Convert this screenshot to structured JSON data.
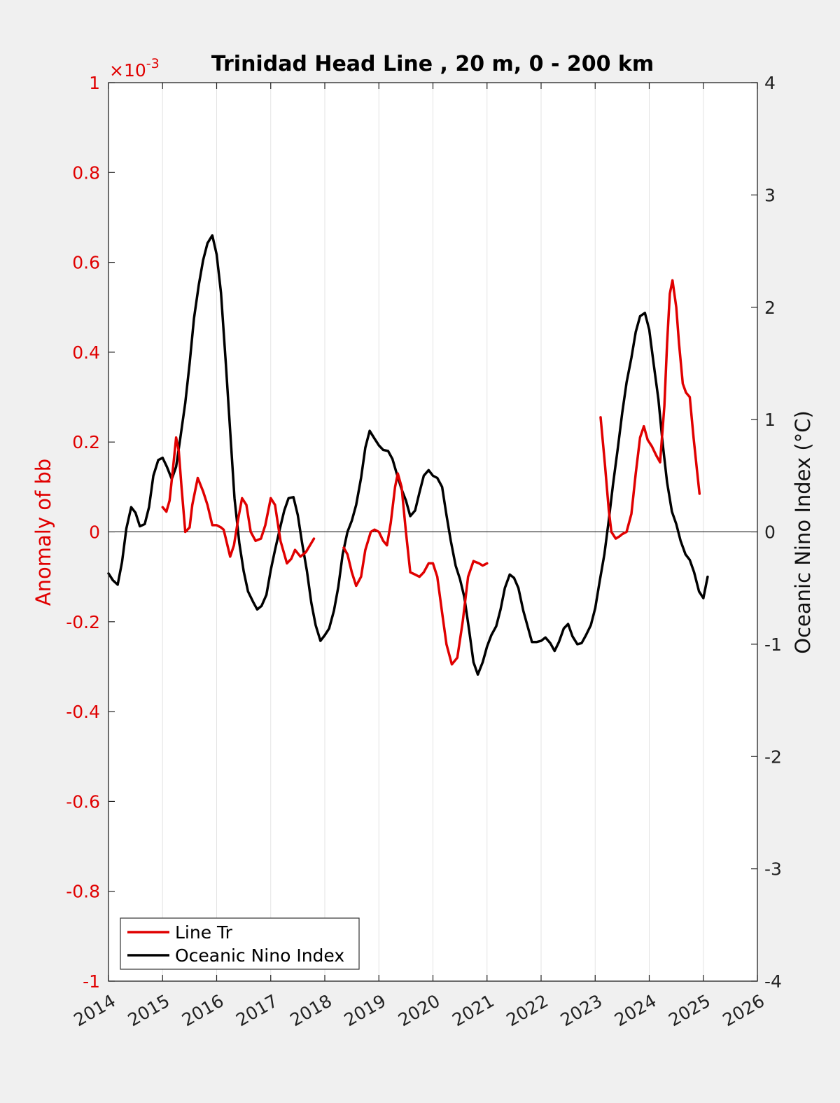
{
  "chart_data": {
    "type": "line",
    "title": "Trinidad Head Line , 20 m, 0 - 200 km",
    "xlabel": "",
    "ylabel_left": "Anomaly of bb",
    "ylabel_right": "Oceanic Nino Index (°C)",
    "left_exponent_base": "×10",
    "left_exponent_power": "-3",
    "xlim": [
      2014,
      2026
    ],
    "ylim_left": [
      -1,
      1
    ],
    "ylim_right": [
      -4,
      4
    ],
    "x_ticks": [
      "2014",
      "2015",
      "2016",
      "2017",
      "2018",
      "2019",
      "2020",
      "2021",
      "2022",
      "2023",
      "2024",
      "2025",
      "2026"
    ],
    "y_ticks_left": [
      "1",
      "0.8",
      "0.6",
      "0.4",
      "0.2",
      "0",
      "-0.2",
      "-0.4",
      "-0.6",
      "-0.8",
      "-1"
    ],
    "y_ticks_right": [
      "4",
      "3",
      "2",
      "1",
      "0",
      "-1",
      "-2",
      "-3",
      "-4"
    ],
    "grid": "x-major",
    "legend_position": "bottom-left",
    "colors": {
      "line_tr": "#e00000",
      "oni": "#000000"
    },
    "series": [
      {
        "name": "Line Tr",
        "axis": "left",
        "segments": [
          [
            [
              2015.0,
              0.055
            ],
            [
              2015.07,
              0.045
            ],
            [
              2015.13,
              0.07
            ],
            [
              2015.2,
              0.15
            ],
            [
              2015.25,
              0.21
            ],
            [
              2015.3,
              0.18
            ],
            [
              2015.35,
              0.1
            ],
            [
              2015.42,
              0.0
            ],
            [
              2015.5,
              0.01
            ],
            [
              2015.55,
              0.06
            ],
            [
              2015.65,
              0.12
            ],
            [
              2015.75,
              0.09
            ],
            [
              2015.83,
              0.06
            ],
            [
              2015.92,
              0.015
            ],
            [
              2016.0,
              0.015
            ],
            [
              2016.08,
              0.01
            ],
            [
              2016.13,
              0.005
            ],
            [
              2016.18,
              -0.02
            ],
            [
              2016.25,
              -0.055
            ],
            [
              2016.32,
              -0.03
            ],
            [
              2016.4,
              0.03
            ],
            [
              2016.47,
              0.075
            ],
            [
              2016.55,
              0.06
            ],
            [
              2016.63,
              0.0
            ],
            [
              2016.72,
              -0.02
            ],
            [
              2016.82,
              -0.015
            ],
            [
              2016.9,
              0.015
            ],
            [
              2017.0,
              0.075
            ],
            [
              2017.08,
              0.06
            ],
            [
              2017.18,
              -0.02
            ],
            [
              2017.3,
              -0.07
            ],
            [
              2017.38,
              -0.06
            ],
            [
              2017.45,
              -0.04
            ],
            [
              2017.55,
              -0.055
            ],
            [
              2017.65,
              -0.045
            ],
            [
              2017.75,
              -0.025
            ],
            [
              2017.8,
              -0.015
            ]
          ],
          [
            [
              2018.35,
              -0.035
            ],
            [
              2018.42,
              -0.05
            ],
            [
              2018.5,
              -0.09
            ],
            [
              2018.58,
              -0.12
            ],
            [
              2018.67,
              -0.1
            ],
            [
              2018.75,
              -0.04
            ],
            [
              2018.85,
              0.0
            ],
            [
              2018.92,
              0.005
            ],
            [
              2019.0,
              0.0
            ],
            [
              2019.08,
              -0.02
            ],
            [
              2019.15,
              -0.03
            ],
            [
              2019.22,
              0.02
            ],
            [
              2019.3,
              0.1
            ],
            [
              2019.35,
              0.13
            ],
            [
              2019.42,
              0.1
            ],
            [
              2019.5,
              0.0
            ],
            [
              2019.58,
              -0.09
            ],
            [
              2019.67,
              -0.095
            ],
            [
              2019.75,
              -0.1
            ],
            [
              2019.83,
              -0.09
            ],
            [
              2019.92,
              -0.07
            ],
            [
              2020.0,
              -0.07
            ],
            [
              2020.08,
              -0.1
            ],
            [
              2020.17,
              -0.18
            ],
            [
              2020.25,
              -0.25
            ],
            [
              2020.35,
              -0.295
            ],
            [
              2020.45,
              -0.28
            ],
            [
              2020.55,
              -0.2
            ],
            [
              2020.65,
              -0.1
            ],
            [
              2020.75,
              -0.065
            ],
            [
              2020.85,
              -0.07
            ],
            [
              2020.92,
              -0.075
            ],
            [
              2021.0,
              -0.07
            ]
          ],
          [
            [
              2023.1,
              0.255
            ],
            [
              2023.18,
              0.15
            ],
            [
              2023.25,
              0.05
            ],
            [
              2023.3,
              0.0
            ],
            [
              2023.38,
              -0.015
            ],
            [
              2023.45,
              -0.01
            ],
            [
              2023.5,
              -0.005
            ],
            [
              2023.58,
              0.0
            ],
            [
              2023.67,
              0.04
            ],
            [
              2023.75,
              0.13
            ],
            [
              2023.83,
              0.21
            ],
            [
              2023.9,
              0.235
            ],
            [
              2023.97,
              0.205
            ],
            [
              2024.05,
              0.19
            ],
            [
              2024.13,
              0.17
            ],
            [
              2024.2,
              0.155
            ],
            [
              2024.28,
              0.28
            ],
            [
              2024.33,
              0.42
            ],
            [
              2024.38,
              0.53
            ],
            [
              2024.43,
              0.56
            ],
            [
              2024.5,
              0.5
            ],
            [
              2024.55,
              0.42
            ],
            [
              2024.62,
              0.33
            ],
            [
              2024.68,
              0.31
            ],
            [
              2024.75,
              0.3
            ],
            [
              2024.82,
              0.21
            ],
            [
              2024.88,
              0.14
            ],
            [
              2024.93,
              0.085
            ]
          ]
        ]
      },
      {
        "name": "Oceanic Nino Index",
        "axis": "right",
        "segments": [
          [
            [
              2014.0,
              -0.37
            ],
            [
              2014.08,
              -0.43
            ],
            [
              2014.17,
              -0.47
            ],
            [
              2014.25,
              -0.27
            ],
            [
              2014.33,
              0.03
            ],
            [
              2014.42,
              0.22
            ],
            [
              2014.5,
              0.17
            ],
            [
              2014.58,
              0.05
            ],
            [
              2014.67,
              0.07
            ],
            [
              2014.75,
              0.22
            ],
            [
              2014.83,
              0.5
            ],
            [
              2014.92,
              0.64
            ],
            [
              2015.0,
              0.66
            ],
            [
              2015.08,
              0.58
            ],
            [
              2015.17,
              0.47
            ],
            [
              2015.25,
              0.58
            ],
            [
              2015.33,
              0.84
            ],
            [
              2015.42,
              1.15
            ],
            [
              2015.5,
              1.5
            ],
            [
              2015.58,
              1.9
            ],
            [
              2015.67,
              2.2
            ],
            [
              2015.75,
              2.42
            ],
            [
              2015.83,
              2.57
            ],
            [
              2015.92,
              2.64
            ],
            [
              2016.0,
              2.47
            ],
            [
              2016.08,
              2.13
            ],
            [
              2016.17,
              1.5
            ],
            [
              2016.25,
              0.9
            ],
            [
              2016.33,
              0.3
            ],
            [
              2016.42,
              -0.1
            ],
            [
              2016.5,
              -0.35
            ],
            [
              2016.58,
              -0.53
            ],
            [
              2016.67,
              -0.62
            ],
            [
              2016.75,
              -0.69
            ],
            [
              2016.83,
              -0.66
            ],
            [
              2016.92,
              -0.56
            ],
            [
              2017.0,
              -0.34
            ],
            [
              2017.08,
              -0.16
            ],
            [
              2017.17,
              0.03
            ],
            [
              2017.25,
              0.19
            ],
            [
              2017.33,
              0.3
            ],
            [
              2017.42,
              0.31
            ],
            [
              2017.5,
              0.15
            ],
            [
              2017.58,
              -0.1
            ],
            [
              2017.67,
              -0.35
            ],
            [
              2017.75,
              -0.63
            ],
            [
              2017.83,
              -0.83
            ],
            [
              2017.92,
              -0.97
            ],
            [
              2018.0,
              -0.92
            ],
            [
              2018.08,
              -0.86
            ],
            [
              2018.17,
              -0.7
            ],
            [
              2018.25,
              -0.49
            ],
            [
              2018.33,
              -0.2
            ],
            [
              2018.42,
              0.0
            ],
            [
              2018.5,
              0.1
            ],
            [
              2018.58,
              0.24
            ],
            [
              2018.67,
              0.48
            ],
            [
              2018.75,
              0.75
            ],
            [
              2018.83,
              0.9
            ],
            [
              2018.92,
              0.83
            ],
            [
              2019.0,
              0.77
            ],
            [
              2019.08,
              0.73
            ],
            [
              2019.17,
              0.72
            ],
            [
              2019.25,
              0.65
            ],
            [
              2019.33,
              0.52
            ],
            [
              2019.42,
              0.38
            ],
            [
              2019.5,
              0.28
            ],
            [
              2019.58,
              0.14
            ],
            [
              2019.67,
              0.19
            ],
            [
              2019.75,
              0.35
            ],
            [
              2019.83,
              0.5
            ],
            [
              2019.92,
              0.55
            ],
            [
              2020.0,
              0.5
            ],
            [
              2020.08,
              0.48
            ],
            [
              2020.17,
              0.4
            ],
            [
              2020.25,
              0.15
            ],
            [
              2020.33,
              -0.08
            ],
            [
              2020.42,
              -0.3
            ],
            [
              2020.5,
              -0.42
            ],
            [
              2020.58,
              -0.58
            ],
            [
              2020.67,
              -0.88
            ],
            [
              2020.75,
              -1.16
            ],
            [
              2020.83,
              -1.27
            ],
            [
              2020.92,
              -1.16
            ],
            [
              2021.0,
              -1.02
            ],
            [
              2021.08,
              -0.92
            ],
            [
              2021.17,
              -0.84
            ],
            [
              2021.25,
              -0.69
            ],
            [
              2021.33,
              -0.5
            ],
            [
              2021.42,
              -0.38
            ],
            [
              2021.5,
              -0.41
            ],
            [
              2021.58,
              -0.5
            ],
            [
              2021.67,
              -0.7
            ],
            [
              2021.75,
              -0.84
            ],
            [
              2021.83,
              -0.98
            ],
            [
              2021.92,
              -0.98
            ],
            [
              2022.0,
              -0.97
            ],
            [
              2022.08,
              -0.94
            ],
            [
              2022.17,
              -0.99
            ],
            [
              2022.25,
              -1.06
            ],
            [
              2022.33,
              -0.98
            ],
            [
              2022.42,
              -0.86
            ],
            [
              2022.5,
              -0.82
            ],
            [
              2022.58,
              -0.93
            ],
            [
              2022.67,
              -1.0
            ],
            [
              2022.75,
              -0.99
            ],
            [
              2022.83,
              -0.92
            ],
            [
              2022.92,
              -0.83
            ],
            [
              2023.0,
              -0.68
            ],
            [
              2023.08,
              -0.45
            ],
            [
              2023.17,
              -0.2
            ],
            [
              2023.25,
              0.1
            ],
            [
              2023.33,
              0.42
            ],
            [
              2023.42,
              0.75
            ],
            [
              2023.5,
              1.06
            ],
            [
              2023.58,
              1.33
            ],
            [
              2023.67,
              1.55
            ],
            [
              2023.75,
              1.78
            ],
            [
              2023.83,
              1.92
            ],
            [
              2023.92,
              1.95
            ],
            [
              2024.0,
              1.8
            ],
            [
              2024.08,
              1.5
            ],
            [
              2024.17,
              1.18
            ],
            [
              2024.25,
              0.78
            ],
            [
              2024.33,
              0.44
            ],
            [
              2024.42,
              0.18
            ],
            [
              2024.5,
              0.07
            ],
            [
              2024.58,
              -0.08
            ],
            [
              2024.67,
              -0.2
            ],
            [
              2024.75,
              -0.25
            ],
            [
              2024.83,
              -0.36
            ],
            [
              2024.92,
              -0.53
            ],
            [
              2025.0,
              -0.59
            ],
            [
              2025.08,
              -0.4
            ]
          ]
        ]
      }
    ]
  }
}
